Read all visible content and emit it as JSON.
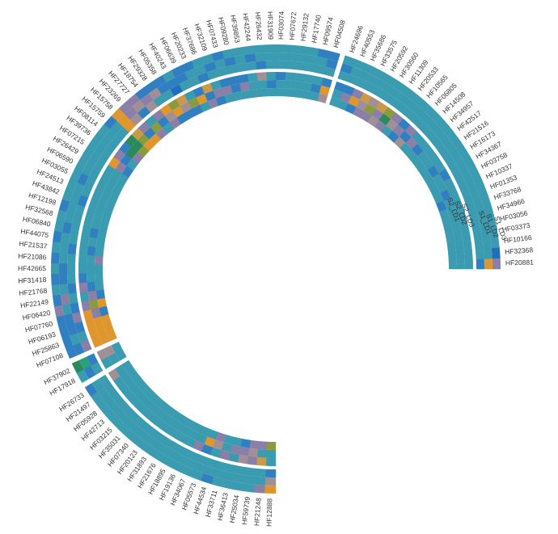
{
  "chart_data": {
    "type": "heatmap",
    "layout": "circular",
    "title": "",
    "start_angle_deg": 0,
    "end_angle_deg": 270,
    "direction": "counterclockwise",
    "tracks": [
      {
        "name": "outer",
        "rows": [
          "S1_LD3",
          "S1_LD2",
          "S1_LD1"
        ]
      },
      {
        "name": "inner",
        "rows": [
          "S2_LD3",
          "S2_LD2",
          "S2_LD1"
        ]
      }
    ],
    "track_labels": [
      {
        "text": "S1_LD3",
        "pos": [
          611,
          269
        ],
        "rot": 70
      },
      {
        "text": "S1_LD2",
        "pos": [
          601,
          266
        ],
        "rot": 70
      },
      {
        "text": "S1_LD1",
        "pos": [
          592,
          262
        ],
        "rot": 70
      },
      {
        "text": "S2_LD3",
        "pos": [
          571,
          253
        ],
        "rot": 70
      },
      {
        "text": "S2_LD2",
        "pos": [
          562,
          250
        ],
        "rot": 70
      },
      {
        "text": "S2_LD1",
        "pos": [
          553,
          246
        ],
        "rot": 70
      }
    ],
    "palette": {
      "base": "#3a9bb1",
      "blue": "#2f7fc1",
      "deepblue": "#1f6fbf",
      "purple": "#8a7fa8",
      "mauve": "#a08f95",
      "orange": "#e0962e",
      "tan": "#c99a4a",
      "olive": "#8a9a3e",
      "green": "#2a8a5a",
      "teal": "#2aa07a"
    },
    "sectors": [
      {
        "name": "S1",
        "genes": [
          "HF20881",
          "HF32368",
          "HF10166",
          "HF03373",
          "HF03056",
          "HF34966",
          "HF33768",
          "HF01353",
          "HF10337",
          "HF03758",
          "HF34367",
          "HF16173",
          "HF21516",
          "HF42517",
          "HF34957",
          "HF14508",
          "HF06805",
          "HF10565",
          "HF20533",
          "HF11309",
          "HF30560",
          "HF20592",
          "HF33575",
          "HF35686",
          "HF40553",
          "HF24696"
        ]
      },
      {
        "name": "S2",
        "genes": [
          "HF04508",
          "HF09574",
          "HF17740",
          "HF29132",
          "HF07672",
          "HF03074",
          "HF31909",
          "HF26432",
          "HF42244",
          "HF39853",
          "HF09280",
          "HF07433",
          "HF32109",
          "HF37686",
          "HF20233",
          "HF06639",
          "HF40243",
          "HF05358",
          "HF29328",
          "HF18754",
          "HF27727",
          "HF23269",
          "HF15758",
          "HF15759",
          "HF08114",
          "HF39736",
          "HF07215",
          "HF26429",
          "HF06590",
          "HF03055",
          "HF24513",
          "HF43842",
          "HF12198",
          "HF32568",
          "HF06840",
          "HF44075",
          "HF21537",
          "HF21086",
          "HF42665",
          "HF31418",
          "HF21768",
          "HF22149",
          "HF06420",
          "HF07760",
          "HF06193",
          "HF25863",
          "HF07108"
        ]
      },
      {
        "name": "S3",
        "genes": [
          "HF37902",
          "HF17918"
        ]
      },
      {
        "name": "S4",
        "genes": [
          "HF26733",
          "HF21497",
          "HF05928",
          "HF42713",
          "HF03215",
          "HF35031",
          "HF07340",
          "HF20123",
          "HF31893",
          "HF21676",
          "HF18895",
          "HF19136",
          "HF34067",
          "HF05573",
          "HF44534",
          "HF33711",
          "HF36413",
          "HF25034",
          "HF59739",
          "HF21248",
          "HF12888"
        ]
      }
    ],
    "values": {
      "HF20881": [
        "purple",
        "orange",
        "blue",
        "base",
        "base",
        "base"
      ],
      "HF32368": [
        "deepblue",
        "base",
        "base",
        "base",
        "base",
        "base"
      ],
      "HF01353": [
        "base",
        "base",
        "base",
        "base",
        "base",
        "blue"
      ],
      "HF10337": [
        "base",
        "base",
        "base",
        "base",
        "blue",
        "base"
      ],
      "HF34367": [
        "base",
        "base",
        "base",
        "blue",
        "base",
        "base"
      ],
      "HF16173": [
        "base",
        "base",
        "base",
        "base",
        "blue",
        "base"
      ],
      "HF34957": [
        "base",
        "base",
        "base",
        "base",
        "blue",
        "base"
      ],
      "HF14508": [
        "base",
        "base",
        "base",
        "base",
        "purple",
        "base"
      ],
      "HF06805": [
        "base",
        "base",
        "base",
        "purple",
        "blue",
        "mauve"
      ],
      "HF10565": [
        "base",
        "base",
        "base",
        "blue",
        "purple",
        "blue"
      ],
      "HF20533": [
        "base",
        "base",
        "base",
        "purple",
        "mauve",
        "base"
      ],
      "HF11309": [
        "base",
        "base",
        "base",
        "olive",
        "green",
        "purple"
      ],
      "HF30560": [
        "base",
        "base",
        "base",
        "tan",
        "purple",
        "mauve"
      ],
      "HF20592": [
        "base",
        "base",
        "base",
        "mauve",
        "olive",
        "purple"
      ],
      "HF33575": [
        "base",
        "base",
        "base",
        "tan",
        "mauve",
        "purple"
      ],
      "HF35686": [
        "base",
        "base",
        "base",
        "purple",
        "orange",
        "blue"
      ],
      "HF40553": [
        "base",
        "base",
        "base",
        "blue",
        "purple",
        "base"
      ],
      "HF24696": [
        "base",
        "blue",
        "base",
        "blue",
        "base",
        "base"
      ],
      "HF04508": [
        "blue",
        "blue",
        "base",
        "blue",
        "orange",
        "mauve"
      ],
      "HF09574": [
        "blue",
        "base",
        "base",
        "base",
        "blue",
        "base"
      ],
      "HF17740": [
        "base",
        "base",
        "base",
        "base",
        "base",
        "base"
      ],
      "HF29132": [
        "base",
        "base",
        "base",
        "base",
        "base",
        "base"
      ],
      "HF07672": [
        "base",
        "base",
        "base",
        "base",
        "base",
        "base"
      ],
      "HF03074": [
        "base",
        "base",
        "base",
        "blue",
        "base",
        "base"
      ],
      "HF31909": [
        "base",
        "base",
        "base",
        "base",
        "blue",
        "base"
      ],
      "HF26432": [
        "base",
        "base",
        "blue",
        "mauve",
        "base",
        "base"
      ],
      "HF42244": [
        "base",
        "blue",
        "base",
        "base",
        "base",
        "base"
      ],
      "HF39853": [
        "base",
        "base",
        "base",
        "blue",
        "purple",
        "base"
      ],
      "HF09280": [
        "base",
        "blue",
        "base",
        "blue",
        "blue",
        "base"
      ],
      "HF07433": [
        "blue",
        "base",
        "base",
        "blue",
        "purple",
        "base"
      ],
      "HF32109": [
        "base",
        "blue",
        "base",
        "base",
        "purple",
        "blue"
      ],
      "HF37686": [
        "base",
        "base",
        "blue",
        "tan",
        "blue",
        "purple"
      ],
      "HF20233": [
        "blue",
        "base",
        "base",
        "blue",
        "orange",
        "base"
      ],
      "HF06639": [
        "blue",
        "blue",
        "base",
        "base",
        "olive",
        "blue"
      ],
      "HF40243": [
        "base",
        "blue",
        "deepblue",
        "tan",
        "mauve",
        "blue"
      ],
      "HF05358": [
        "blue",
        "blue",
        "base",
        "olive",
        "orange",
        "blue"
      ],
      "HF29328": [
        "blue",
        "mauve",
        "base",
        "orange",
        "mauve",
        "purple"
      ],
      "HF18754": [
        "blue",
        "purple",
        "mauve",
        "purple",
        "blue",
        "base"
      ],
      "HF27727": [
        "purple",
        "mauve",
        "blue",
        "base",
        "olive",
        "purple"
      ],
      "HF23269": [
        "purple",
        "purple",
        "mauve",
        "purple",
        "blue",
        "orange"
      ],
      "HF15758": [
        "orange",
        "orange",
        "orange",
        "tan",
        "olive",
        "orange"
      ],
      "HF15759": [
        "blue",
        "base",
        "base",
        "green",
        "green",
        "olive"
      ],
      "HF08114": [
        "base",
        "base",
        "base",
        "blue",
        "green",
        "purple"
      ],
      "HF39736": [
        "base",
        "base",
        "base",
        "purple",
        "blue",
        "base"
      ],
      "HF07215": [
        "base",
        "base",
        "base",
        "orange",
        "purple",
        "blue"
      ],
      "HF26429": [
        "base",
        "base",
        "base",
        "base",
        "base",
        "base"
      ],
      "HF06590": [
        "base",
        "base",
        "base",
        "base",
        "base",
        "base"
      ],
      "HF03055": [
        "base",
        "blue",
        "base",
        "base",
        "base",
        "base"
      ],
      "HF24513": [
        "base",
        "base",
        "base",
        "base",
        "base",
        "base"
      ],
      "HF43842": [
        "base",
        "base",
        "blue",
        "base",
        "base",
        "base"
      ],
      "HF12198": [
        "blue",
        "base",
        "base",
        "base",
        "base",
        "base"
      ],
      "HF32568": [
        "base",
        "base",
        "base",
        "base",
        "base",
        "base"
      ],
      "HF06840": [
        "base",
        "blue",
        "base",
        "base",
        "blue",
        "base"
      ],
      "HF44075": [
        "blue",
        "base",
        "base",
        "base",
        "base",
        "base"
      ],
      "HF21537": [
        "base",
        "base",
        "blue",
        "base",
        "blue",
        "base"
      ],
      "HF21086": [
        "blue",
        "base",
        "base",
        "base",
        "base",
        "purple"
      ],
      "HF42665": [
        "base",
        "blue",
        "base",
        "base",
        "base",
        "base"
      ],
      "HF31418": [
        "blue",
        "blue",
        "base",
        "blue",
        "base",
        "base"
      ],
      "HF21768": [
        "base",
        "base",
        "blue",
        "purple",
        "blue",
        "base"
      ],
      "HF22149": [
        "blue",
        "purple",
        "base",
        "base",
        "purple",
        "blue"
      ],
      "HF06420": [
        "purple",
        "base",
        "blue",
        "purple",
        "olive",
        "orange"
      ],
      "HF07760": [
        "blue",
        "blue",
        "purple",
        "orange",
        "purple",
        "blue"
      ],
      "HF06193": [
        "blue",
        "blue",
        "blue",
        "orange",
        "orange",
        "orange"
      ],
      "HF25863": [
        "blue",
        "base",
        "base",
        "orange",
        "orange",
        "orange"
      ],
      "HF07108": [
        "blue",
        "blue",
        "purple",
        "orange",
        "orange",
        "orange"
      ],
      "HF37902": [
        "green",
        "teal",
        "blue",
        "mauve",
        "mauve",
        "base"
      ],
      "HF17918": [
        "base",
        "blue",
        "base",
        "base",
        "base",
        "base"
      ],
      "HF26733": [
        "blue",
        "base",
        "base",
        "mauve",
        "base",
        "base"
      ],
      "HF34067": [
        "base",
        "base",
        "base",
        "purple",
        "base",
        "base"
      ],
      "HF05573": [
        "base",
        "base",
        "base",
        "blue",
        "orange",
        "base"
      ],
      "HF44534": [
        "blue",
        "base",
        "base",
        "base",
        "mauve",
        "purple"
      ],
      "HF33711": [
        "base",
        "base",
        "base",
        "purple",
        "base",
        "base"
      ],
      "HF36413": [
        "base",
        "base",
        "base",
        "base",
        "purple",
        "base"
      ],
      "HF25034": [
        "base",
        "base",
        "base",
        "mauve",
        "purple",
        "blue"
      ],
      "HF59739": [
        "base",
        "base",
        "base",
        "purple",
        "mauve",
        "purple"
      ],
      "HF21248": [
        "purple",
        "base",
        "base",
        "tan",
        "base",
        "purple"
      ],
      "HF12888": [
        "orange",
        "mauve",
        "blue",
        "base",
        "base",
        "olive"
      ]
    }
  }
}
